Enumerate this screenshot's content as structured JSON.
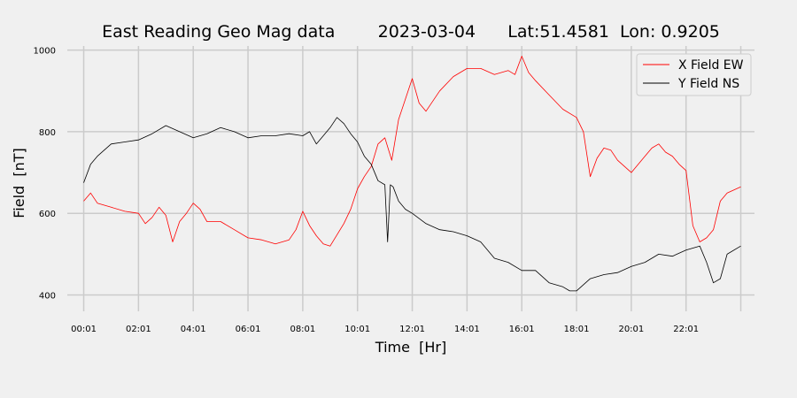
{
  "chart_data": {
    "type": "line",
    "title": "East Reading Geo Mag data        2023-03-04      Lat:51.4581  Lon: 0.9205",
    "xlabel": "Time  [Hr]",
    "ylabel": "Field  [nT]",
    "xlim": [
      -0.6,
      24.5
    ],
    "ylim": [
      360,
      1010
    ],
    "x_ticks": [
      {
        "value": 0,
        "label": "00:01"
      },
      {
        "value": 2,
        "label": "02:01"
      },
      {
        "value": 4,
        "label": "04:01"
      },
      {
        "value": 6,
        "label": "06:01"
      },
      {
        "value": 8,
        "label": "08:01"
      },
      {
        "value": 10,
        "label": "10:01"
      },
      {
        "value": 12,
        "label": "12:01"
      },
      {
        "value": 14,
        "label": "14:01"
      },
      {
        "value": 16,
        "label": "16:01"
      },
      {
        "value": 18,
        "label": "18:01"
      },
      {
        "value": 20,
        "label": "20:01"
      },
      {
        "value": 22,
        "label": "22:01"
      }
    ],
    "x_gridlines": [
      0,
      2,
      4,
      6,
      8,
      10,
      12,
      14,
      16,
      18,
      20,
      22,
      24
    ],
    "y_ticks": [
      400,
      600,
      800,
      1000
    ],
    "grid": true,
    "legend_position": "top-right",
    "series": [
      {
        "name": "X Field EW",
        "color": "#ff0000",
        "x": [
          0,
          0.25,
          0.5,
          1,
          1.5,
          2,
          2.25,
          2.5,
          2.75,
          3,
          3.25,
          3.5,
          3.75,
          4,
          4.25,
          4.5,
          5,
          5.5,
          6,
          6.5,
          7,
          7.5,
          7.75,
          8,
          8.25,
          8.5,
          8.75,
          9,
          9.5,
          9.75,
          10,
          10.25,
          10.5,
          10.75,
          11,
          11.25,
          11.5,
          11.75,
          12,
          12.25,
          12.5,
          13,
          13.5,
          14,
          14.5,
          15,
          15.5,
          15.75,
          16,
          16.25,
          16.5,
          17,
          17.5,
          18,
          18.25,
          18.5,
          18.75,
          19,
          19.25,
          19.5,
          20,
          20.5,
          20.75,
          21,
          21.25,
          21.5,
          21.75,
          22,
          22.25,
          22.5,
          22.75,
          23,
          23.25,
          23.5,
          24
        ],
        "y": [
          630,
          650,
          625,
          615,
          605,
          600,
          575,
          590,
          615,
          595,
          530,
          580,
          600,
          625,
          610,
          580,
          580,
          560,
          540,
          535,
          525,
          535,
          560,
          605,
          570,
          545,
          525,
          520,
          575,
          610,
          660,
          690,
          715,
          770,
          785,
          730,
          830,
          880,
          930,
          870,
          850,
          900,
          935,
          955,
          955,
          940,
          950,
          940,
          985,
          945,
          925,
          890,
          855,
          835,
          800,
          690,
          735,
          760,
          755,
          730,
          700,
          740,
          760,
          770,
          750,
          740,
          720,
          705,
          570,
          530,
          540,
          560,
          630,
          650,
          665
        ]
      },
      {
        "name": "Y Field NS",
        "color": "#000000",
        "x": [
          0,
          0.25,
          0.5,
          1,
          1.5,
          2,
          2.5,
          3,
          3.5,
          4,
          4.5,
          5,
          5.5,
          6,
          6.5,
          7,
          7.5,
          8,
          8.25,
          8.5,
          8.75,
          9,
          9.25,
          9.5,
          9.75,
          10,
          10.25,
          10.5,
          10.75,
          11,
          11.1,
          11.2,
          11.3,
          11.5,
          11.75,
          12,
          12.5,
          13,
          13.5,
          14,
          14.5,
          15,
          15.5,
          16,
          16.5,
          17,
          17.5,
          17.75,
          18,
          18.5,
          19,
          19.5,
          20,
          20.5,
          21,
          21.5,
          22,
          22.5,
          22.75,
          23,
          23.25,
          23.5,
          24
        ],
        "y": [
          675,
          720,
          740,
          770,
          775,
          780,
          795,
          815,
          800,
          785,
          795,
          810,
          800,
          785,
          790,
          790,
          795,
          790,
          800,
          770,
          790,
          810,
          835,
          820,
          795,
          775,
          740,
          720,
          680,
          670,
          530,
          670,
          665,
          630,
          610,
          600,
          575,
          560,
          555,
          545,
          530,
          490,
          480,
          460,
          460,
          430,
          420,
          410,
          410,
          440,
          450,
          455,
          470,
          480,
          500,
          495,
          510,
          520,
          480,
          430,
          440,
          500,
          520
        ]
      }
    ]
  }
}
